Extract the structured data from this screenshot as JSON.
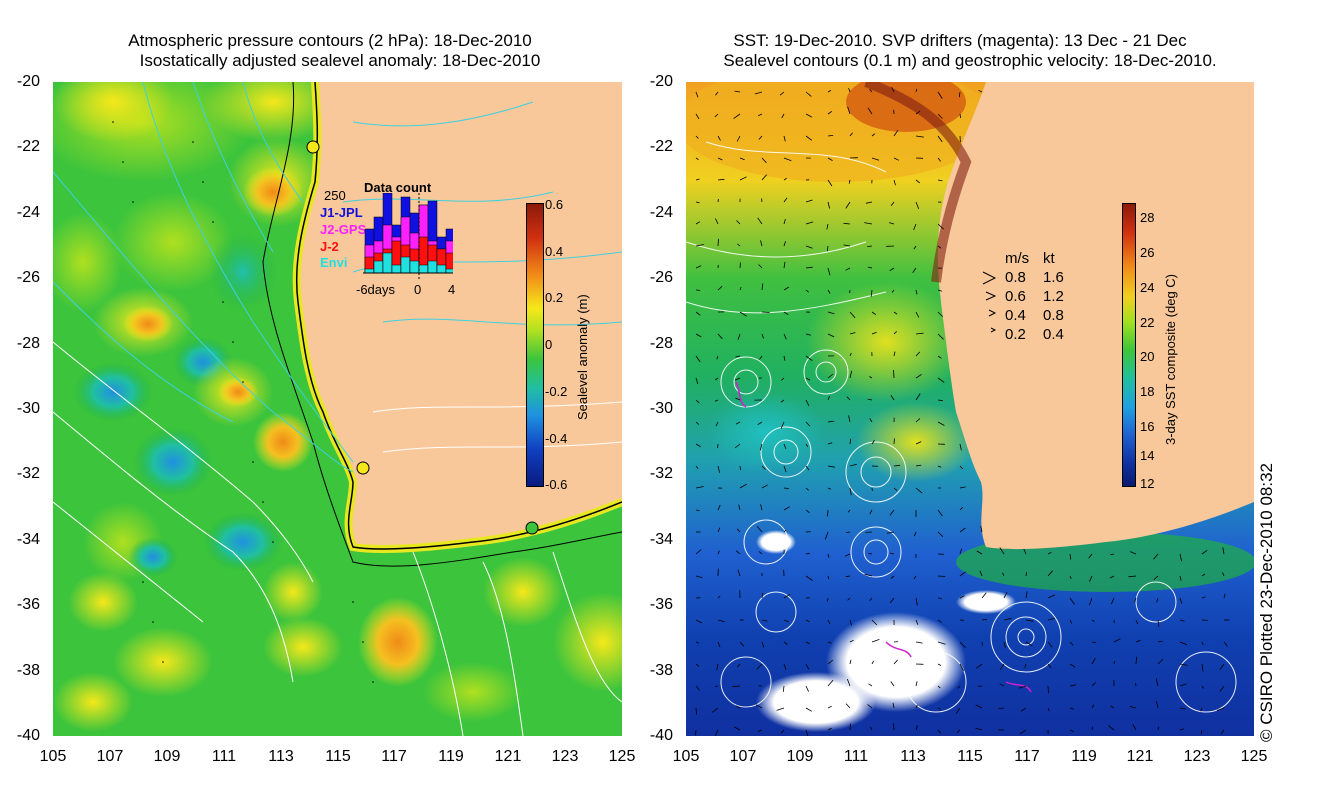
{
  "left_panel": {
    "title_line1": "Atmospheric pressure contours (2 hPa): 18-Dec-2010",
    "title_line2": "Isostatically adjusted sealevel anomaly: 18-Dec-2010",
    "y_ticks": [
      "-20",
      "-22",
      "-24",
      "-26",
      "-28",
      "-30",
      "-32",
      "-34",
      "-36",
      "-38",
      "-40"
    ],
    "x_ticks": [
      "105",
      "107",
      "109",
      "111",
      "113",
      "115",
      "117",
      "119",
      "121",
      "123",
      "125"
    ],
    "colorbar": {
      "label": "Sealevel anomaly (m)",
      "ticks": [
        "0.6",
        "0.4",
        "0.2",
        "0",
        "-0.2",
        "-0.4",
        "-0.6"
      ]
    },
    "data_count": {
      "title": "Data count",
      "max_label": "250",
      "x_labels": [
        "-6days",
        "0",
        "4"
      ],
      "missions": [
        {
          "name": "J1-JPL",
          "color": "#1010e0"
        },
        {
          "name": "J2-GPS",
          "color": "#ff20ff"
        },
        {
          "name": "J-2",
          "color": "#ff1010"
        },
        {
          "name": "Envi",
          "color": "#20e0e0"
        }
      ],
      "bars": [
        {
          "day": -6,
          "J1": 0.55,
          "J2": 0.35,
          "J2_": 0.2,
          "Envi": 0.05
        },
        {
          "day": -5,
          "J1": 0.7,
          "J2": 0.4,
          "J2_": 0.25,
          "Envi": 0.15
        },
        {
          "day": -4,
          "J1": 1.0,
          "J2": 0.6,
          "J2_": 0.3,
          "Envi": 0.25
        },
        {
          "day": -3,
          "J1": 0.6,
          "J2": 0.45,
          "J2_": 0.4,
          "Envi": 0.1
        },
        {
          "day": -2,
          "J1": 0.95,
          "J2": 0.7,
          "J2_": 0.35,
          "Envi": 0.2
        },
        {
          "day": -1,
          "J1": 0.75,
          "J2": 0.5,
          "J2_": 0.3,
          "Envi": 0.15
        },
        {
          "day": 0,
          "J1": 0.85,
          "J2": 0.85,
          "J2_": 0.45,
          "Envi": 0.1
        },
        {
          "day": 1,
          "J1": 0.9,
          "J2": 0.4,
          "J2_": 0.35,
          "Envi": 0.15
        },
        {
          "day": 2,
          "J1": 0.45,
          "J2": 0.3,
          "J2_": 0.3,
          "Envi": 0.1
        },
        {
          "day": 3,
          "J1": 0.55,
          "J2": 0.4,
          "J2_": 0.25,
          "Envi": 0.05
        }
      ]
    }
  },
  "right_panel": {
    "title_line1": "SST: 19-Dec-2010. SVP drifters (magenta): 13 Dec - 21 Dec",
    "title_line2": "Sealevel contours (0.1 m) and geostrophic velocity: 18-Dec-2010.",
    "y_ticks": [
      "-20",
      "-22",
      "-24",
      "-26",
      "-28",
      "-30",
      "-32",
      "-34",
      "-36",
      "-38",
      "-40"
    ],
    "x_ticks": [
      "105",
      "107",
      "109",
      "111",
      "113",
      "115",
      "117",
      "119",
      "121",
      "123",
      "125"
    ],
    "colorbar": {
      "label": "3-day SST composite (deg C)",
      "ticks": [
        "28",
        "26",
        "24",
        "22",
        "20",
        "18",
        "16",
        "14",
        "12"
      ]
    },
    "velocity_legend": {
      "header_ms": "m/s",
      "header_kt": "kt",
      "rows": [
        {
          "ms": "0.8",
          "kt": "1.6"
        },
        {
          "ms": "0.6",
          "kt": "1.2"
        },
        {
          "ms": "0.4",
          "kt": "0.8"
        },
        {
          "ms": "0.2",
          "kt": "0.4"
        }
      ]
    }
  },
  "credit": "© CSIRO Plotted 23-Dec-2010 08:32",
  "colors": {
    "land": "#f9c89a",
    "cyan_contour": "#3fd0e0",
    "white_contour": "#ffffff",
    "magenta_drifter": "#d020d0"
  }
}
